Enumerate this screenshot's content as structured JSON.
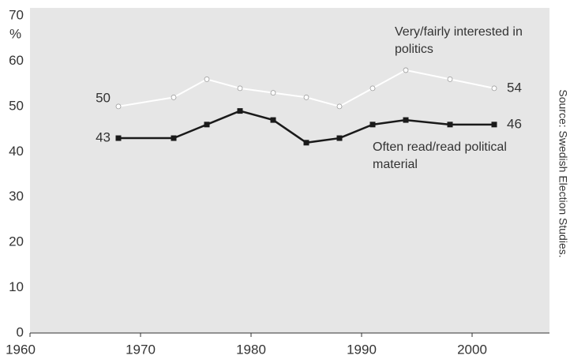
{
  "chart_data": {
    "type": "line",
    "y_unit": "%",
    "source": "Source: Swedish Election Studies.",
    "x": [
      1968,
      1973,
      1976,
      1979,
      1982,
      1985,
      1988,
      1991,
      1994,
      1998,
      2002
    ],
    "series": [
      {
        "name": "Very/fairly interested in politics",
        "color": "#ffffff",
        "marker": "open-circle",
        "values": [
          50,
          52,
          56,
          54,
          53,
          52,
          50,
          54,
          58,
          56,
          54
        ]
      },
      {
        "name": "Often read/read political material",
        "color": "#1a1a1a",
        "marker": "square",
        "values": [
          43,
          43,
          46,
          49,
          47,
          42,
          43,
          46,
          47,
          46,
          46
        ]
      }
    ],
    "xlim": [
      1960,
      2007
    ],
    "xticks": [
      1960,
      1970,
      1980,
      1990,
      2000
    ],
    "ylim": [
      0,
      70
    ],
    "yticks": [
      0,
      10,
      20,
      30,
      40,
      50,
      60,
      70
    ],
    "grid": false,
    "background": "#e6e6e6"
  }
}
